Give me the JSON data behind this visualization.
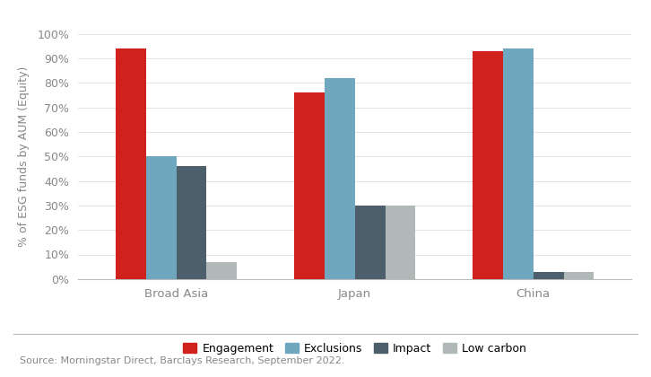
{
  "categories": [
    "Broad Asia",
    "Japan",
    "China"
  ],
  "series": {
    "Engagement": [
      94,
      76,
      93
    ],
    "Exclusions": [
      50,
      82,
      94
    ],
    "Impact": [
      46,
      30,
      3
    ],
    "Low carbon": [
      7,
      30,
      3
    ]
  },
  "colors": {
    "Engagement": "#d0221c",
    "Exclusions": "#6fa8be",
    "Impact": "#4d5f6a",
    "Low carbon": "#b0b8b8"
  },
  "ylabel": "% of ESG funds by AUM (Equity)",
  "ylim": [
    0,
    100
  ],
  "yticks": [
    0,
    10,
    20,
    30,
    40,
    50,
    60,
    70,
    80,
    90,
    100
  ],
  "ytick_labels": [
    "0%",
    "10%",
    "20%",
    "30%",
    "40%",
    "50%",
    "60%",
    "70%",
    "80%",
    "90%",
    "100%"
  ],
  "source_text": "Source: Morningstar Direct, Barclays Research, September 2022.",
  "background_color": "#ffffff",
  "bar_width": 0.17,
  "tick_color": "#888888",
  "spine_color": "#bbbbbb",
  "grid_color": "#dddddd"
}
